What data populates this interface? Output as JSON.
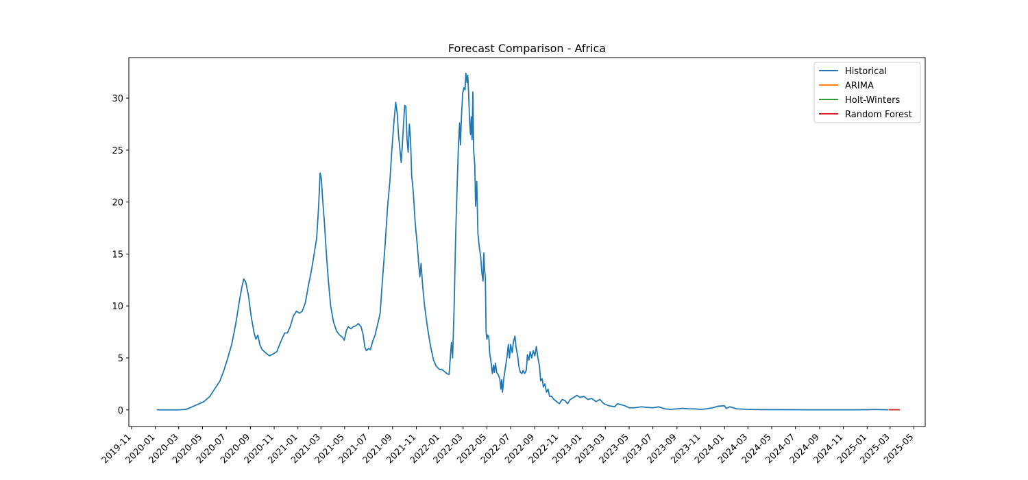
{
  "chart_data": {
    "type": "line",
    "title": "Forecast Comparison - Africa",
    "xlabel": "",
    "ylabel": "",
    "grid": false,
    "legend_position": "top-right",
    "xlim": [
      "2019-10-25",
      "2025-05-30"
    ],
    "ylim": [
      -1.6,
      33.9
    ],
    "y_ticks": [
      0,
      5,
      10,
      15,
      20,
      25,
      30
    ],
    "x_ticks": [
      "2019-11",
      "2020-01",
      "2020-03",
      "2020-05",
      "2020-07",
      "2020-09",
      "2020-11",
      "2021-01",
      "2021-03",
      "2021-05",
      "2021-07",
      "2021-09",
      "2021-11",
      "2022-01",
      "2022-03",
      "2022-05",
      "2022-07",
      "2022-09",
      "2022-11",
      "2023-01",
      "2023-03",
      "2023-05",
      "2023-07",
      "2023-09",
      "2023-11",
      "2024-01",
      "2024-03",
      "2024-05",
      "2024-07",
      "2024-09",
      "2024-11",
      "2025-01",
      "2025-03",
      "2025-05"
    ],
    "series": [
      {
        "name": "Historical",
        "color": "#1f77b4",
        "points": [
          [
            "2020-01-05",
            0
          ],
          [
            "2020-02-01",
            0
          ],
          [
            "2020-03-01",
            0
          ],
          [
            "2020-03-20",
            0.05
          ],
          [
            "2020-04-05",
            0.3
          ],
          [
            "2020-04-20",
            0.55
          ],
          [
            "2020-05-05",
            0.8
          ],
          [
            "2020-05-20",
            1.3
          ],
          [
            "2020-06-01",
            2.0
          ],
          [
            "2020-06-15",
            2.8
          ],
          [
            "2020-06-25",
            3.8
          ],
          [
            "2020-07-05",
            5.0
          ],
          [
            "2020-07-15",
            6.3
          ],
          [
            "2020-07-25",
            8.2
          ],
          [
            "2020-08-03",
            10.3
          ],
          [
            "2020-08-10",
            11.8
          ],
          [
            "2020-08-15",
            12.6
          ],
          [
            "2020-08-20",
            12.3
          ],
          [
            "2020-08-27",
            11.0
          ],
          [
            "2020-09-03",
            9.0
          ],
          [
            "2020-09-10",
            7.5
          ],
          [
            "2020-09-15",
            6.8
          ],
          [
            "2020-09-20",
            7.2
          ],
          [
            "2020-09-25",
            6.3
          ],
          [
            "2020-10-01",
            5.8
          ],
          [
            "2020-10-10",
            5.5
          ],
          [
            "2020-10-20",
            5.2
          ],
          [
            "2020-10-30",
            5.4
          ],
          [
            "2020-11-08",
            5.6
          ],
          [
            "2020-11-15",
            6.3
          ],
          [
            "2020-11-22",
            6.9
          ],
          [
            "2020-11-28",
            7.4
          ],
          [
            "2020-12-05",
            7.4
          ],
          [
            "2020-12-12",
            8.0
          ],
          [
            "2020-12-20",
            9.0
          ],
          [
            "2020-12-28",
            9.5
          ],
          [
            "2021-01-05",
            9.3
          ],
          [
            "2021-01-12",
            9.5
          ],
          [
            "2021-01-20",
            10.3
          ],
          [
            "2021-01-28",
            12.0
          ],
          [
            "2021-02-05",
            13.5
          ],
          [
            "2021-02-12",
            15.1
          ],
          [
            "2021-02-18",
            16.5
          ],
          [
            "2021-02-23",
            19.5
          ],
          [
            "2021-02-27",
            22.8
          ],
          [
            "2021-03-02",
            22.3
          ],
          [
            "2021-03-05",
            20.5
          ],
          [
            "2021-03-10",
            18.0
          ],
          [
            "2021-03-15",
            15.0
          ],
          [
            "2021-03-20",
            12.5
          ],
          [
            "2021-03-26",
            10.0
          ],
          [
            "2021-04-02",
            8.5
          ],
          [
            "2021-04-10",
            7.6
          ],
          [
            "2021-04-18",
            7.2
          ],
          [
            "2021-04-25",
            7.0
          ],
          [
            "2021-04-30",
            6.7
          ],
          [
            "2021-05-05",
            7.6
          ],
          [
            "2021-05-10",
            8.0
          ],
          [
            "2021-05-17",
            7.8
          ],
          [
            "2021-05-23",
            8.0
          ],
          [
            "2021-05-30",
            8.1
          ],
          [
            "2021-06-05",
            8.3
          ],
          [
            "2021-06-12",
            8.0
          ],
          [
            "2021-06-17",
            7.3
          ],
          [
            "2021-06-22",
            6.0
          ],
          [
            "2021-06-26",
            5.7
          ],
          [
            "2021-07-01",
            5.9
          ],
          [
            "2021-07-06",
            5.8
          ],
          [
            "2021-07-12",
            6.6
          ],
          [
            "2021-07-18",
            7.2
          ],
          [
            "2021-07-25",
            8.3
          ],
          [
            "2021-07-31",
            9.3
          ],
          [
            "2021-08-05",
            12.0
          ],
          [
            "2021-08-12",
            15.5
          ],
          [
            "2021-08-19",
            19.5
          ],
          [
            "2021-08-25",
            22.0
          ],
          [
            "2021-08-30",
            25.0
          ],
          [
            "2021-09-04",
            27.5
          ],
          [
            "2021-09-09",
            29.6
          ],
          [
            "2021-09-13",
            28.5
          ],
          [
            "2021-09-16",
            26.5
          ],
          [
            "2021-09-20",
            25.0
          ],
          [
            "2021-09-23",
            23.8
          ],
          [
            "2021-09-26",
            25.5
          ],
          [
            "2021-09-29",
            27.5
          ],
          [
            "2021-10-02",
            29.3
          ],
          [
            "2021-10-05",
            29.2
          ],
          [
            "2021-10-08",
            26.0
          ],
          [
            "2021-10-11",
            24.8
          ],
          [
            "2021-10-14",
            27.5
          ],
          [
            "2021-10-17",
            26.0
          ],
          [
            "2021-10-20",
            22.5
          ],
          [
            "2021-10-24",
            21.0
          ],
          [
            "2021-10-29",
            18.0
          ],
          [
            "2021-11-03",
            16.0
          ],
          [
            "2021-11-07",
            14.0
          ],
          [
            "2021-11-10",
            12.8
          ],
          [
            "2021-11-13",
            14.1
          ],
          [
            "2021-11-17",
            12.0
          ],
          [
            "2021-11-22",
            10.0
          ],
          [
            "2021-11-30",
            7.8
          ],
          [
            "2021-12-08",
            6.0
          ],
          [
            "2021-12-15",
            4.8
          ],
          [
            "2021-12-22",
            4.2
          ],
          [
            "2021-12-30",
            3.9
          ],
          [
            "2022-01-05",
            3.9
          ],
          [
            "2022-01-12",
            3.7
          ],
          [
            "2022-01-18",
            3.5
          ],
          [
            "2022-01-24",
            3.4
          ],
          [
            "2022-01-27",
            5.0
          ],
          [
            "2022-01-30",
            6.5
          ],
          [
            "2022-02-02",
            5.0
          ],
          [
            "2022-02-06",
            10.0
          ],
          [
            "2022-02-10",
            17.0
          ],
          [
            "2022-02-14",
            22.0
          ],
          [
            "2022-02-17",
            25.5
          ],
          [
            "2022-02-20",
            27.6
          ],
          [
            "2022-02-22",
            25.5
          ],
          [
            "2022-02-25",
            28.5
          ],
          [
            "2022-02-28",
            30.5
          ],
          [
            "2022-03-03",
            31.0
          ],
          [
            "2022-03-06",
            30.8
          ],
          [
            "2022-03-08",
            32.4
          ],
          [
            "2022-03-11",
            31.5
          ],
          [
            "2022-03-13",
            32.2
          ],
          [
            "2022-03-15",
            30.5
          ],
          [
            "2022-03-18",
            27.5
          ],
          [
            "2022-03-20",
            26.5
          ],
          [
            "2022-03-22",
            28.2
          ],
          [
            "2022-03-24",
            26.0
          ],
          [
            "2022-03-26",
            30.6
          ],
          [
            "2022-03-28",
            25.0
          ],
          [
            "2022-03-31",
            23.5
          ],
          [
            "2022-04-02",
            19.6
          ],
          [
            "2022-04-05",
            22.0
          ],
          [
            "2022-04-08",
            17.0
          ],
          [
            "2022-04-12",
            15.5
          ],
          [
            "2022-04-15",
            14.8
          ],
          [
            "2022-04-18",
            13.2
          ],
          [
            "2022-04-21",
            12.4
          ],
          [
            "2022-04-23",
            15.1
          ],
          [
            "2022-04-25",
            13.5
          ],
          [
            "2022-04-27",
            12.8
          ],
          [
            "2022-04-29",
            7.5
          ],
          [
            "2022-05-01",
            6.8
          ],
          [
            "2022-05-03",
            7.2
          ],
          [
            "2022-05-06",
            7.0
          ],
          [
            "2022-05-08",
            5.5
          ],
          [
            "2022-05-12",
            4.5
          ],
          [
            "2022-05-15",
            3.5
          ],
          [
            "2022-05-18",
            4.3
          ],
          [
            "2022-05-20",
            3.6
          ],
          [
            "2022-05-23",
            4.5
          ],
          [
            "2022-05-26",
            3.6
          ],
          [
            "2022-05-30",
            3.4
          ],
          [
            "2022-06-03",
            3.0
          ],
          [
            "2022-06-06",
            2.0
          ],
          [
            "2022-06-08",
            2.9
          ],
          [
            "2022-06-10",
            1.7
          ],
          [
            "2022-06-14",
            3.2
          ],
          [
            "2022-06-18",
            4.2
          ],
          [
            "2022-06-22",
            5.2
          ],
          [
            "2022-06-25",
            6.3
          ],
          [
            "2022-06-28",
            5.0
          ],
          [
            "2022-07-01",
            6.3
          ],
          [
            "2022-07-05",
            5.5
          ],
          [
            "2022-07-08",
            6.5
          ],
          [
            "2022-07-12",
            7.1
          ],
          [
            "2022-07-15",
            6.0
          ],
          [
            "2022-07-19",
            5.2
          ],
          [
            "2022-07-22",
            4.2
          ],
          [
            "2022-07-26",
            3.6
          ],
          [
            "2022-07-30",
            3.5
          ],
          [
            "2022-08-02",
            3.8
          ],
          [
            "2022-08-06",
            3.5
          ],
          [
            "2022-08-10",
            3.8
          ],
          [
            "2022-08-13",
            5.3
          ],
          [
            "2022-08-17",
            4.8
          ],
          [
            "2022-08-20",
            5.6
          ],
          [
            "2022-08-24",
            5.0
          ],
          [
            "2022-08-28",
            5.7
          ],
          [
            "2022-09-01",
            5.2
          ],
          [
            "2022-09-05",
            6.1
          ],
          [
            "2022-09-09",
            5.0
          ],
          [
            "2022-09-13",
            4.2
          ],
          [
            "2022-09-16",
            2.8
          ],
          [
            "2022-09-20",
            3.0
          ],
          [
            "2022-09-23",
            2.2
          ],
          [
            "2022-09-27",
            2.5
          ],
          [
            "2022-10-01",
            1.7
          ],
          [
            "2022-10-05",
            2.0
          ],
          [
            "2022-10-09",
            1.3
          ],
          [
            "2022-10-14",
            1.3
          ],
          [
            "2022-10-20",
            1.0
          ],
          [
            "2022-10-27",
            0.8
          ],
          [
            "2022-11-03",
            0.6
          ],
          [
            "2022-11-10",
            1.0
          ],
          [
            "2022-11-17",
            0.9
          ],
          [
            "2022-11-24",
            0.6
          ],
          [
            "2022-12-01",
            1.0
          ],
          [
            "2022-12-10",
            1.2
          ],
          [
            "2022-12-18",
            1.4
          ],
          [
            "2022-12-26",
            1.2
          ],
          [
            "2023-01-05",
            1.3
          ],
          [
            "2023-01-15",
            1.0
          ],
          [
            "2023-01-25",
            1.1
          ],
          [
            "2023-02-05",
            0.8
          ],
          [
            "2023-02-15",
            1.0
          ],
          [
            "2023-02-25",
            0.6
          ],
          [
            "2023-03-10",
            0.4
          ],
          [
            "2023-03-25",
            0.3
          ],
          [
            "2023-04-01",
            0.6
          ],
          [
            "2023-04-10",
            0.5
          ],
          [
            "2023-04-20",
            0.4
          ],
          [
            "2023-05-01",
            0.2
          ],
          [
            "2023-05-15",
            0.2
          ],
          [
            "2023-06-01",
            0.3
          ],
          [
            "2023-06-15",
            0.25
          ],
          [
            "2023-07-01",
            0.2
          ],
          [
            "2023-07-15",
            0.3
          ],
          [
            "2023-08-01",
            0.1
          ],
          [
            "2023-08-15",
            0.05
          ],
          [
            "2023-09-01",
            0.1
          ],
          [
            "2023-09-15",
            0.15
          ],
          [
            "2023-10-01",
            0.1
          ],
          [
            "2023-10-15",
            0.1
          ],
          [
            "2023-11-01",
            0.05
          ],
          [
            "2023-11-15",
            0.1
          ],
          [
            "2023-12-01",
            0.2
          ],
          [
            "2023-12-15",
            0.35
          ],
          [
            "2024-01-01",
            0.4
          ],
          [
            "2024-01-05",
            0.15
          ],
          [
            "2024-01-15",
            0.3
          ],
          [
            "2024-02-01",
            0.1
          ],
          [
            "2024-03-01",
            0.05
          ],
          [
            "2024-04-01",
            0.03
          ],
          [
            "2024-06-01",
            0.02
          ],
          [
            "2024-08-01",
            0.01
          ],
          [
            "2024-10-01",
            0.01
          ],
          [
            "2024-12-01",
            0.01
          ],
          [
            "2025-01-01",
            0.02
          ],
          [
            "2025-01-20",
            0.04
          ],
          [
            "2025-02-10",
            0.02
          ],
          [
            "2025-02-24",
            0.01
          ]
        ]
      },
      {
        "name": "ARIMA",
        "color": "#ff7f0e",
        "points": [
          [
            "2025-02-25",
            0.02
          ],
          [
            "2025-03-26",
            0.02
          ]
        ]
      },
      {
        "name": "Holt-Winters",
        "color": "#2ca02c",
        "points": [
          [
            "2025-02-25",
            0.02
          ],
          [
            "2025-03-26",
            0.02
          ]
        ]
      },
      {
        "name": "Random Forest",
        "color": "#d62728",
        "points": [
          [
            "2025-02-25",
            0.02
          ],
          [
            "2025-03-26",
            0.02
          ]
        ]
      }
    ]
  }
}
